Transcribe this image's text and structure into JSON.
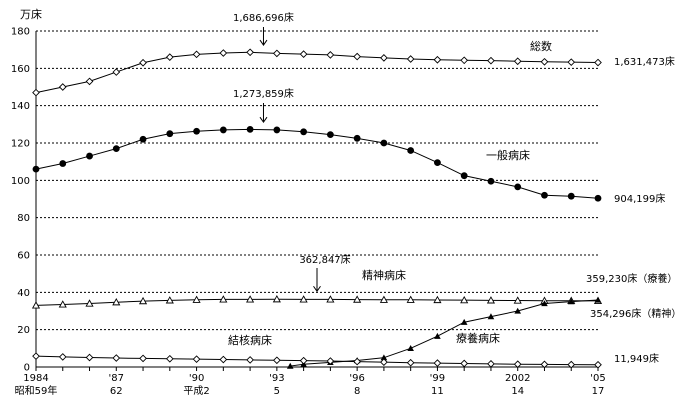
{
  "chart_data": {
    "type": "line",
    "ylabel": "万床",
    "ylim": [
      0,
      180
    ],
    "yticks": [
      0,
      20,
      40,
      60,
      80,
      100,
      120,
      140,
      160,
      180
    ],
    "grid": "horizontal dashed",
    "xlim": [
      1984,
      2005
    ],
    "xticks": [
      {
        "x": 1984,
        "top": "1984",
        "bottom": "昭和59年"
      },
      {
        "x": 1987,
        "top": "'87",
        "bottom": "62"
      },
      {
        "x": 1990,
        "top": "'90",
        "bottom": "平成2"
      },
      {
        "x": 1993,
        "top": "'93",
        "bottom": "5"
      },
      {
        "x": 1996,
        "top": "'96",
        "bottom": "8"
      },
      {
        "x": 1999,
        "top": "'99",
        "bottom": "11"
      },
      {
        "x": 2002,
        "top": "2002",
        "bottom": "14"
      },
      {
        "x": 2005,
        "top": "'05",
        "bottom": "17"
      }
    ],
    "series": [
      {
        "name": "総数",
        "marker": "diamond-open",
        "x": [
          1984,
          1985,
          1986,
          1987,
          1988,
          1989,
          1990,
          1991,
          1992,
          1993,
          1994,
          1995,
          1996,
          1997,
          1998,
          1999,
          2000,
          2001,
          2002,
          2003,
          2004,
          2005
        ],
        "values": [
          147,
          150,
          153,
          158,
          163,
          166,
          167.5,
          168.2,
          168.6,
          168,
          167.6,
          167.2,
          166.3,
          165.6,
          165,
          164.6,
          164.3,
          164.1,
          163.8,
          163.5,
          163.3,
          163.1
        ]
      },
      {
        "name": "一般病床",
        "marker": "circle-filled",
        "x": [
          1984,
          1985,
          1986,
          1987,
          1988,
          1989,
          1990,
          1991,
          1992,
          1993,
          1994,
          1995,
          1996,
          1997,
          1998,
          1999,
          2000,
          2001,
          2002,
          2003,
          2004,
          2005
        ],
        "values": [
          106,
          109,
          113,
          117,
          122,
          125,
          126.3,
          127,
          127.3,
          127,
          126,
          124.5,
          122.5,
          120,
          116,
          109.5,
          102.5,
          99.5,
          96.5,
          92,
          91.5,
          90.4
        ]
      },
      {
        "name": "精神病床",
        "marker": "triangle-open",
        "x": [
          1984,
          1985,
          1986,
          1987,
          1988,
          1989,
          1990,
          1991,
          1992,
          1993,
          1994,
          1995,
          1996,
          1997,
          1998,
          1999,
          2000,
          2001,
          2002,
          2003,
          2004,
          2005
        ],
        "values": [
          33,
          33.5,
          34,
          34.7,
          35.3,
          35.7,
          36,
          36.2,
          36.2,
          36.3,
          36.2,
          36.2,
          36.1,
          36,
          36,
          35.9,
          35.8,
          35.7,
          35.6,
          35.5,
          35.5,
          35.4
        ]
      },
      {
        "name": "療養病床",
        "marker": "triangle-filled",
        "x": [
          1993.5,
          1994,
          1995,
          1996,
          1997,
          1998,
          1999,
          2000,
          2001,
          2002,
          2003,
          2004,
          2005
        ],
        "values": [
          0.5,
          1.5,
          2.5,
          3.5,
          5,
          10,
          16.5,
          24,
          27,
          30,
          34,
          35,
          35.9
        ]
      },
      {
        "name": "結核病床",
        "marker": "diamond-open",
        "x": [
          1984,
          1985,
          1986,
          1987,
          1988,
          1989,
          1990,
          1991,
          1992,
          1993,
          1994,
          1995,
          1996,
          1997,
          1998,
          1999,
          2000,
          2001,
          2002,
          2003,
          2004,
          2005
        ],
        "values": [
          5.8,
          5.4,
          5.1,
          4.8,
          4.6,
          4.4,
          4.2,
          4,
          3.8,
          3.6,
          3.4,
          3.2,
          2.9,
          2.6,
          2.3,
          2.1,
          1.9,
          1.7,
          1.5,
          1.4,
          1.3,
          1.19
        ]
      }
    ],
    "annotations": [
      {
        "text": "1,686,696床",
        "x": 1992.5,
        "y": 168.7
      },
      {
        "text": "1,273,859床",
        "x": 1992.5,
        "y": 127.4
      },
      {
        "text": "362,847床",
        "x": 1994.5,
        "y": 36.3
      }
    ],
    "end_labels": [
      {
        "text": "1,631,473床"
      },
      {
        "text": "904,199床"
      },
      {
        "text": "359,230床（療養）"
      },
      {
        "text": "354,296床（精神）"
      },
      {
        "text": "11,949床"
      }
    ]
  }
}
